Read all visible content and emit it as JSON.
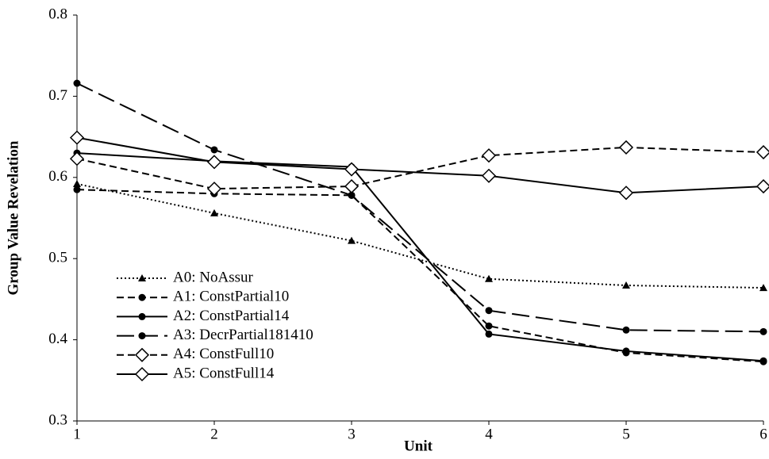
{
  "chart_data": {
    "type": "line",
    "x_label": "Unit",
    "y_label": "Group Value Revelation",
    "x": [
      1,
      2,
      3,
      4,
      5,
      6
    ],
    "xlim": [
      1,
      6
    ],
    "xticks": [
      1,
      2,
      3,
      4,
      5,
      6
    ],
    "ylim": [
      0.3,
      0.8
    ],
    "yticks": [
      {
        "value": 0.3,
        "label": "0.3"
      },
      {
        "value": 0.4,
        "label": "0.4"
      },
      {
        "value": 0.5,
        "label": "0.5"
      },
      {
        "value": 0.6,
        "label": "0.6"
      },
      {
        "value": 0.7,
        "label": "0.7"
      },
      {
        "value": 0.8,
        "label": "0.8"
      }
    ],
    "grid": false,
    "legend": "lower left",
    "series": [
      {
        "name": "A0: NoAssur",
        "color": "#000000",
        "dash": "dotted",
        "marker": "triangle",
        "values": [
          0.592,
          0.556,
          0.522,
          0.475,
          0.467,
          0.464
        ]
      },
      {
        "name": "A1: ConstPartial10",
        "color": "#000000",
        "dash": "dashed",
        "marker": "circle",
        "values": [
          0.585,
          0.58,
          0.578,
          0.417,
          0.384,
          0.373
        ]
      },
      {
        "name": "A2: ConstPartial14",
        "color": "#000000",
        "dash": "solid",
        "marker": "circle",
        "values": [
          0.63,
          0.62,
          0.613,
          0.407,
          0.386,
          0.374
        ]
      },
      {
        "name": "A3: DecrPartial181410",
        "color": "#000000",
        "dash": "longdash",
        "marker": "circle",
        "values": [
          0.716,
          0.634,
          0.578,
          0.436,
          0.412,
          0.41
        ]
      },
      {
        "name": "A4: ConstFull10",
        "color": "#000000",
        "dash": "dashed",
        "marker": "diamond-open",
        "values": [
          0.623,
          0.586,
          0.589,
          0.627,
          0.637,
          0.631
        ]
      },
      {
        "name": "A5: ConstFull14",
        "color": "#000000",
        "dash": "solid",
        "marker": "diamond-open",
        "values": [
          0.649,
          0.619,
          0.61,
          0.602,
          0.581,
          0.589
        ]
      }
    ]
  }
}
